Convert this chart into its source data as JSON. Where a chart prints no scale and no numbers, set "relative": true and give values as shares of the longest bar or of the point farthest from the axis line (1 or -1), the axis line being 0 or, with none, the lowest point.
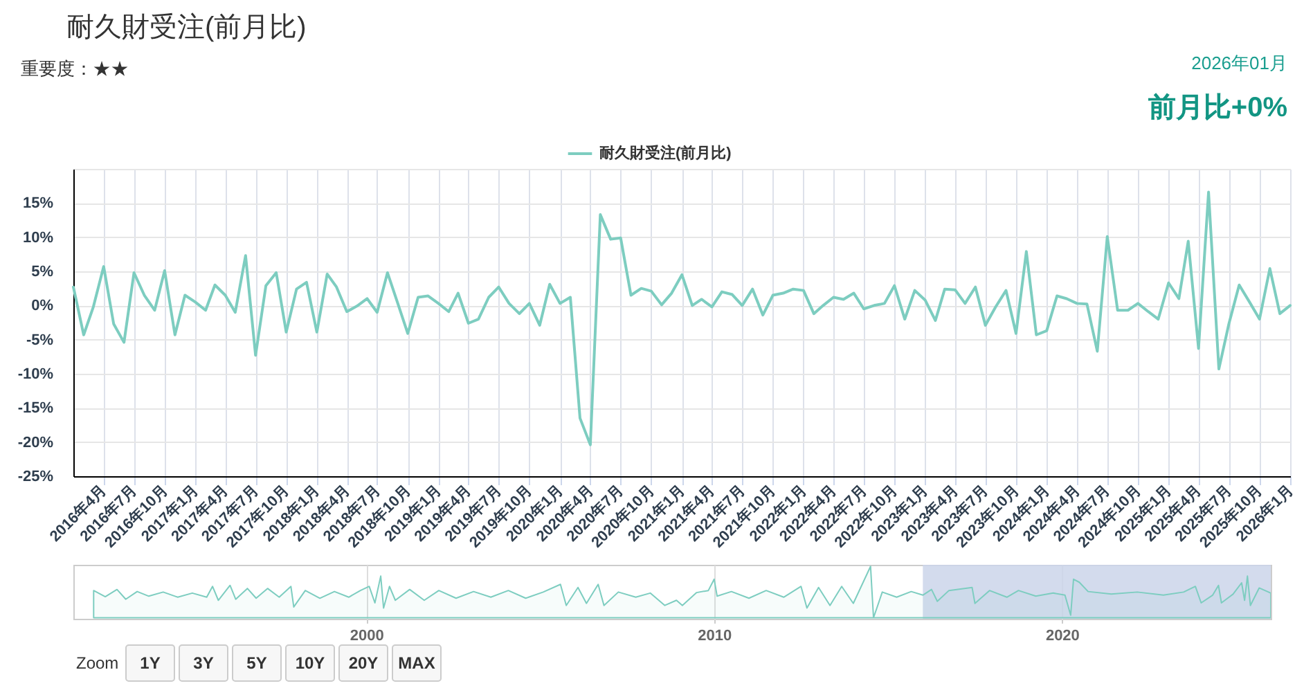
{
  "chart_data": [
    {
      "type": "line",
      "title": "耐久財受注(前月比)",
      "subtitle": "重要度：★★",
      "annotations": [
        "2026年01月",
        "前月比+0%"
      ],
      "x": [
        "2016-01",
        "2016-02",
        "2016-03",
        "2016-04",
        "2016-05",
        "2016-06",
        "2016-07",
        "2016-08",
        "2016-09",
        "2016-10",
        "2016-11",
        "2016-12",
        "2017-01",
        "2017-02",
        "2017-03",
        "2017-04",
        "2017-05",
        "2017-06",
        "2017-07",
        "2017-08",
        "2017-09",
        "2017-10",
        "2017-11",
        "2017-12",
        "2018-01",
        "2018-02",
        "2018-03",
        "2018-04",
        "2018-05",
        "2018-06",
        "2018-07",
        "2018-08",
        "2018-09",
        "2018-10",
        "2018-11",
        "2018-12",
        "2019-01",
        "2019-02",
        "2019-03",
        "2019-04",
        "2019-05",
        "2019-06",
        "2019-07",
        "2019-08",
        "2019-09",
        "2019-10",
        "2019-11",
        "2019-12",
        "2020-01",
        "2020-02",
        "2020-03",
        "2020-04",
        "2020-05",
        "2020-06",
        "2020-07",
        "2020-08",
        "2020-09",
        "2020-10",
        "2020-11",
        "2020-12",
        "2021-01",
        "2021-02",
        "2021-03",
        "2021-04",
        "2021-05",
        "2021-06",
        "2021-07",
        "2021-08",
        "2021-09",
        "2021-10",
        "2021-11",
        "2021-12",
        "2022-01",
        "2022-02",
        "2022-03",
        "2022-04",
        "2022-05",
        "2022-06",
        "2022-07",
        "2022-08",
        "2022-09",
        "2022-10",
        "2022-11",
        "2022-12",
        "2023-01",
        "2023-02",
        "2023-03",
        "2023-04",
        "2023-05",
        "2023-06",
        "2023-07",
        "2023-08",
        "2023-09",
        "2023-10",
        "2023-11",
        "2023-12",
        "2024-01",
        "2024-02",
        "2024-03",
        "2024-04",
        "2024-05",
        "2024-06",
        "2024-07",
        "2024-08",
        "2024-09",
        "2024-10",
        "2024-11",
        "2024-12",
        "2025-01",
        "2025-02",
        "2025-03",
        "2025-04",
        "2025-05",
        "2025-06",
        "2025-07",
        "2025-08",
        "2025-09",
        "2025-10",
        "2025-11",
        "2025-12",
        "2026-01"
      ],
      "series": [
        {
          "name": "耐久財受注(前月比)",
          "color": "#7dcdc0",
          "values": [
            2.7,
            -4.3,
            -0.2,
            5.7,
            -2.7,
            -5.4,
            4.8,
            1.5,
            -0.7,
            5.1,
            -4.3,
            1.5,
            0.5,
            -0.7,
            3.0,
            1.5,
            -1.0,
            7.3,
            -7.3,
            2.9,
            4.8,
            -3.9,
            2.4,
            3.4,
            -3.9,
            4.6,
            2.7,
            -0.9,
            -0.1,
            1.0,
            -1.0,
            4.8,
            0.3,
            -4.1,
            1.2,
            1.4,
            0.3,
            -0.9,
            1.8,
            -2.6,
            -2.0,
            1.2,
            2.7,
            0.3,
            -1.2,
            0.3,
            -2.9,
            3.1,
            0.3,
            1.2,
            -16.5,
            -20.4,
            13.3,
            9.7,
            9.9,
            1.5,
            2.5,
            2.1,
            0.1,
            1.8,
            4.5,
            0.0,
            0.9,
            -0.2,
            2.0,
            1.6,
            0.0,
            2.4,
            -1.4,
            1.5,
            1.8,
            2.4,
            2.2,
            -1.2,
            0.0,
            1.2,
            0.9,
            1.8,
            -0.5,
            0.0,
            0.3,
            2.9,
            -2.0,
            2.2,
            0.8,
            -2.2,
            2.4,
            2.3,
            0.3,
            2.7,
            -2.9,
            -0.2,
            2.2,
            -4.1,
            7.9,
            -4.3,
            -3.7,
            1.4,
            1.0,
            0.3,
            0.2,
            -6.7,
            10.1,
            -0.7,
            -0.7,
            0.3,
            -0.9,
            -2.0,
            3.3,
            1.0,
            9.4,
            -6.3,
            16.6,
            -9.3,
            -2.7,
            3.0,
            0.5,
            -2.0,
            5.4,
            -1.2,
            0.0
          ]
        }
      ],
      "xlim": [
        "2016-01",
        "2026-01"
      ],
      "xticks": [
        {
          "value": "2016-04",
          "label": "2016年4月"
        },
        {
          "value": "2016-07",
          "label": "2016年7月"
        },
        {
          "value": "2016-10",
          "label": "2016年10月"
        },
        {
          "value": "2017-01",
          "label": "2017年1月"
        },
        {
          "value": "2017-04",
          "label": "2017年4月"
        },
        {
          "value": "2017-07",
          "label": "2017年7月"
        },
        {
          "value": "2017-10",
          "label": "2017年10月"
        },
        {
          "value": "2018-01",
          "label": "2018年1月"
        },
        {
          "value": "2018-04",
          "label": "2018年4月"
        },
        {
          "value": "2018-07",
          "label": "2018年7月"
        },
        {
          "value": "2018-10",
          "label": "2018年10月"
        },
        {
          "value": "2019-01",
          "label": "2019年1月"
        },
        {
          "value": "2019-04",
          "label": "2019年4月"
        },
        {
          "value": "2019-07",
          "label": "2019年7月"
        },
        {
          "value": "2019-10",
          "label": "2019年10月"
        },
        {
          "value": "2020-01",
          "label": "2020年1月"
        },
        {
          "value": "2020-04",
          "label": "2020年4月"
        },
        {
          "value": "2020-07",
          "label": "2020年7月"
        },
        {
          "value": "2020-10",
          "label": "2020年10月"
        },
        {
          "value": "2021-01",
          "label": "2021年1月"
        },
        {
          "value": "2021-04",
          "label": "2021年4月"
        },
        {
          "value": "2021-07",
          "label": "2021年7月"
        },
        {
          "value": "2021-10",
          "label": "2021年10月"
        },
        {
          "value": "2022-01",
          "label": "2022年1月"
        },
        {
          "value": "2022-04",
          "label": "2022年4月"
        },
        {
          "value": "2022-07",
          "label": "2022年7月"
        },
        {
          "value": "2022-10",
          "label": "2022年10月"
        },
        {
          "value": "2023-01",
          "label": "2023年1月"
        },
        {
          "value": "2023-04",
          "label": "2023年4月"
        },
        {
          "value": "2023-07",
          "label": "2023年7月"
        },
        {
          "value": "2023-10",
          "label": "2023年10月"
        },
        {
          "value": "2024-01",
          "label": "2024年1月"
        },
        {
          "value": "2024-04",
          "label": "2024年4月"
        },
        {
          "value": "2024-07",
          "label": "2024年7月"
        },
        {
          "value": "2024-10",
          "label": "2024年10月"
        },
        {
          "value": "2025-01",
          "label": "2025年1月"
        },
        {
          "value": "2025-04",
          "label": "2025年4月"
        },
        {
          "value": "2025-07",
          "label": "2025年7月"
        },
        {
          "value": "2025-10",
          "label": "2025年10月"
        },
        {
          "value": "2026-01",
          "label": "2026年1月"
        }
      ],
      "ylim": [
        -25,
        20
      ],
      "yticks": [
        {
          "value": 20,
          "label": null
        },
        {
          "value": 15,
          "label": "15%"
        },
        {
          "value": 10,
          "label": "10%"
        },
        {
          "value": 5,
          "label": "5%"
        },
        {
          "value": 0,
          "label": "0%"
        },
        {
          "value": -5,
          "label": "-5%"
        },
        {
          "value": -10,
          "label": "-10%"
        },
        {
          "value": -15,
          "label": "-15%"
        },
        {
          "value": -20,
          "label": "-20%"
        },
        {
          "value": -25,
          "label": "-25%"
        }
      ],
      "grid": true,
      "legend": "top"
    },
    {
      "type": "area",
      "relative": true,
      "x": [
        "1992-03",
        "1992-07",
        "1992-11",
        "1993-02",
        "1993-06",
        "1993-10",
        "1994-03",
        "1994-08",
        "1995-01",
        "1995-06",
        "1995-08",
        "1995-10",
        "1996-02",
        "1996-04",
        "1996-08",
        "1996-11",
        "1997-03",
        "1997-07",
        "1997-11",
        "1997-12",
        "1998-04",
        "1998-09",
        "1999-02",
        "1999-07",
        "1999-11",
        "2000-02",
        "2000-04",
        "2000-06",
        "2000-07",
        "2000-09",
        "2000-11",
        "2001-04",
        "2001-09",
        "2002-02",
        "2002-08",
        "2003-02",
        "2003-08",
        "2004-02",
        "2004-08",
        "2005-02",
        "2005-08",
        "2005-10",
        "2006-02",
        "2006-05",
        "2006-09",
        "2006-11",
        "2007-04",
        "2007-10",
        "2008-03",
        "2008-08",
        "2008-12",
        "2009-02",
        "2009-07",
        "2009-11",
        "2010-01",
        "2010-02",
        "2010-07",
        "2011-01",
        "2011-07",
        "2012-01",
        "2012-07",
        "2012-09",
        "2013-01",
        "2013-05",
        "2013-09",
        "2014-01",
        "2014-07",
        "2014-08",
        "2014-11",
        "2015-04",
        "2015-09",
        "2016-01",
        "2016-04",
        "2016-06",
        "2016-10",
        "2017-06",
        "2017-07",
        "2017-12",
        "2018-06",
        "2018-10",
        "2019-04",
        "2019-10",
        "2020-02",
        "2020-04",
        "2020-05",
        "2020-07",
        "2020-10",
        "2021-06",
        "2022-03",
        "2022-12",
        "2023-07",
        "2023-11",
        "2024-01",
        "2024-05",
        "2024-07",
        "2024-08",
        "2024-12",
        "2025-03",
        "2025-04",
        "2025-05",
        "2025-06",
        "2025-09",
        "2026-01"
      ],
      "series": [
        {
          "color": "#7dcdc0",
          "values": [
            0.53,
            0.41,
            0.55,
            0.36,
            0.51,
            0.42,
            0.5,
            0.4,
            0.48,
            0.4,
            0.61,
            0.34,
            0.63,
            0.36,
            0.57,
            0.38,
            0.57,
            0.4,
            0.61,
            0.21,
            0.53,
            0.38,
            0.51,
            0.4,
            0.53,
            0.61,
            0.29,
            0.81,
            0.19,
            0.61,
            0.34,
            0.55,
            0.34,
            0.53,
            0.38,
            0.51,
            0.4,
            0.53,
            0.38,
            0.5,
            0.65,
            0.24,
            0.59,
            0.28,
            0.65,
            0.24,
            0.5,
            0.4,
            0.48,
            0.24,
            0.34,
            0.24,
            0.49,
            0.53,
            0.75,
            0.42,
            0.51,
            0.38,
            0.53,
            0.4,
            0.61,
            0.19,
            0.59,
            0.24,
            0.61,
            0.28,
            1.0,
            0.0,
            0.5,
            0.4,
            0.51,
            0.44,
            0.55,
            0.32,
            0.53,
            0.59,
            0.28,
            0.53,
            0.4,
            0.53,
            0.42,
            0.48,
            0.44,
            0.05,
            0.75,
            0.69,
            0.51,
            0.46,
            0.5,
            0.44,
            0.5,
            0.61,
            0.29,
            0.44,
            0.63,
            0.29,
            0.46,
            0.68,
            0.34,
            0.81,
            0.24,
            0.58,
            0.48
          ]
        }
      ],
      "xlim": [
        "1991-08",
        "2026-01"
      ],
      "xticks": [
        {
          "value": "2000",
          "label": "2000"
        },
        {
          "value": "2010",
          "label": "2010"
        },
        {
          "value": "2020",
          "label": "2020"
        }
      ],
      "grid": "x",
      "bands": [
        {
          "axis": "x",
          "from": "2016-01",
          "to": "2026-01",
          "color": "#cbd5ea"
        }
      ],
      "annotations": [
        "Zoom",
        "1Y",
        "3Y",
        "5Y",
        "10Y",
        "20Y",
        "MAX"
      ]
    }
  ]
}
